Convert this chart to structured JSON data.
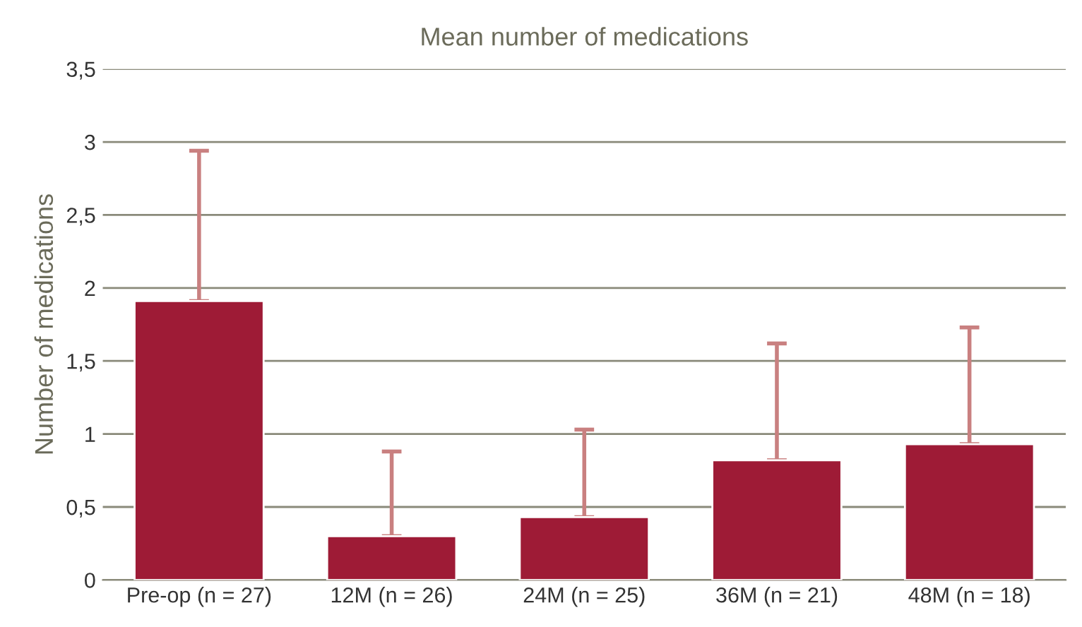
{
  "chart_data": {
    "type": "bar",
    "title": "Mean number of medications",
    "ylabel": "Number of medications",
    "categories": [
      "Pre-op (n = 27)",
      "12M (n = 26)",
      "24M (n = 25)",
      "36M (n = 21)",
      "48M (n = 18)"
    ],
    "values": [
      1.91,
      0.3,
      0.43,
      0.82,
      0.93
    ],
    "errors": [
      [
        1.91,
        2.94
      ],
      [
        0.3,
        0.88
      ],
      [
        0.43,
        1.03
      ],
      [
        0.82,
        1.62
      ],
      [
        0.93,
        1.73
      ]
    ],
    "color": "#9e1b36",
    "ylim": [
      0,
      3.5
    ],
    "yticks": [
      0,
      {
        "value": 0.5,
        "label": "0,5"
      },
      1,
      {
        "value": 1.5,
        "label": "1,5"
      },
      2,
      {
        "value": 2.5,
        "label": "2,5"
      },
      3,
      {
        "value": 3.5,
        "label": "3,5"
      }
    ],
    "grid": "y"
  }
}
